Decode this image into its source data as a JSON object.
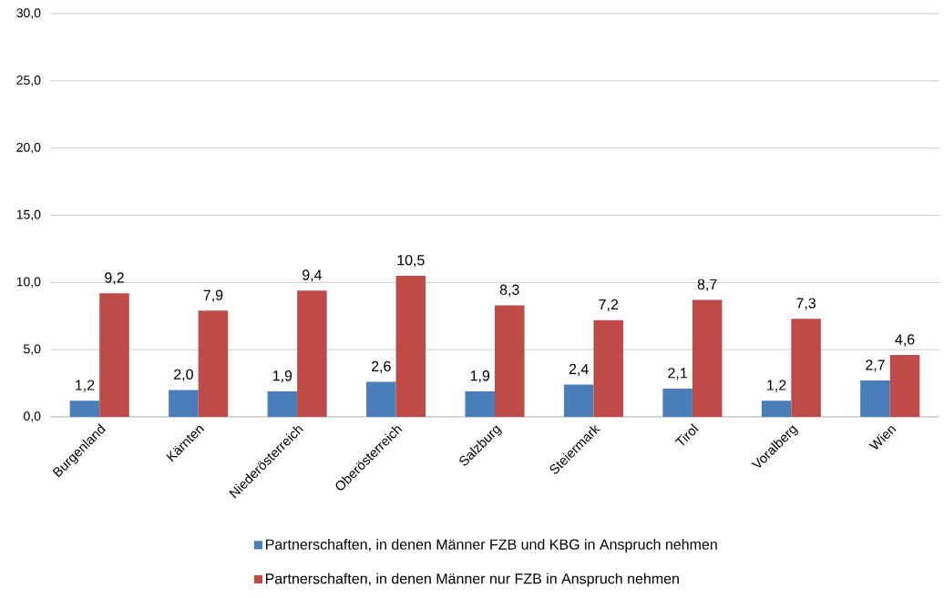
{
  "chart_data": {
    "type": "bar",
    "categories": [
      "Burgenland",
      "Kärnten",
      "Niederösterreich",
      "Oberösterreich",
      "Salzburg",
      "Steiermark",
      "Tirol",
      "Voralberg",
      "Wien"
    ],
    "series": [
      {
        "name": "Partnerschaften, in denen Männer FZB und KBG in Anspruch nehmen",
        "color": "#4a7ebb",
        "values": [
          1.2,
          2.0,
          1.9,
          2.6,
          1.9,
          2.4,
          2.1,
          1.2,
          2.7
        ],
        "value_labels": [
          "1,2",
          "2,0",
          "1,9",
          "2,6",
          "1,9",
          "2,4",
          "2,1",
          "1,2",
          "2,7"
        ]
      },
      {
        "name": "Partnerschaften, in denen Männer nur FZB in Anspruch nehmen",
        "color": "#be4b48",
        "values": [
          9.2,
          7.9,
          9.4,
          10.5,
          8.3,
          7.2,
          8.7,
          7.3,
          4.6
        ],
        "value_labels": [
          "9,2",
          "7,9",
          "9,4",
          "10,5",
          "8,3",
          "7,2",
          "8,7",
          "7,3",
          "4,6"
        ]
      }
    ],
    "ylim": [
      0,
      30
    ],
    "yticks": [
      {
        "value": 0,
        "label": "0,0"
      },
      {
        "value": 5,
        "label": "5,0"
      },
      {
        "value": 10,
        "label": "10,0"
      },
      {
        "value": 15,
        "label": "15,0"
      },
      {
        "value": 20,
        "label": "20,0"
      },
      {
        "value": 25,
        "label": "25,0"
      },
      {
        "value": 30,
        "label": "30,0"
      }
    ],
    "grid": "y",
    "legend": "bottom"
  }
}
